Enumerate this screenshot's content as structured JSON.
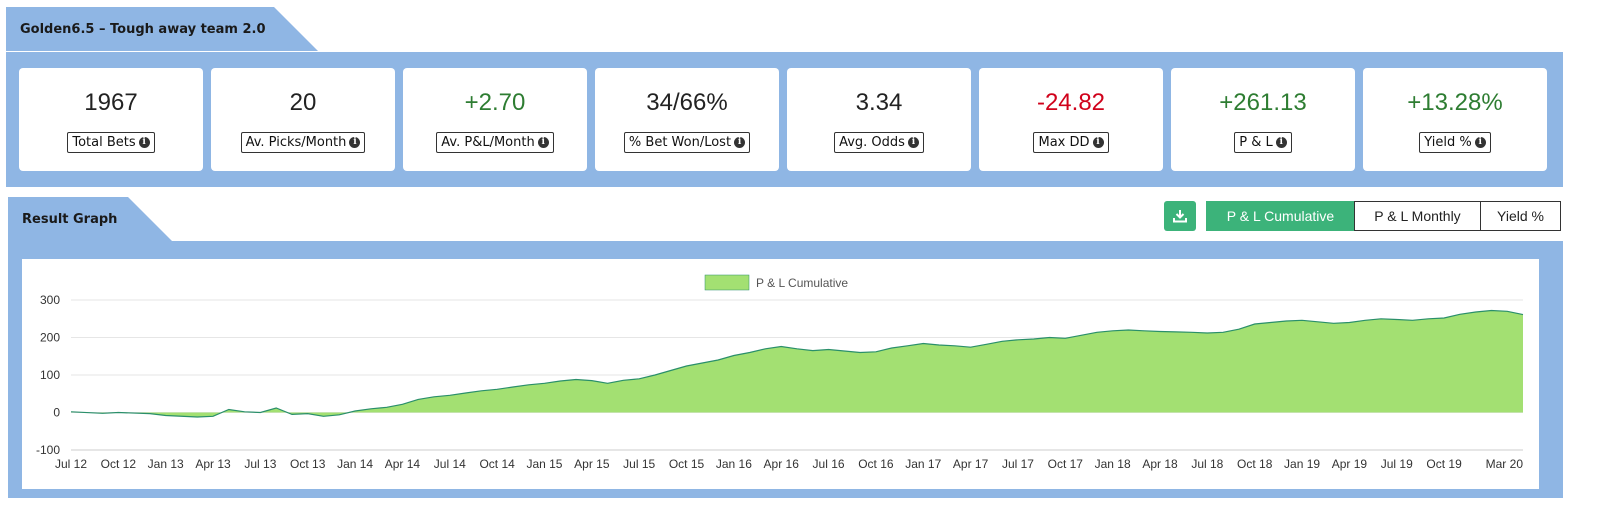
{
  "strategy": {
    "title": "Golden6.5 – Tough away team 2.0"
  },
  "stats": [
    {
      "value": "1967",
      "label": "Total Bets",
      "tone": "neutral"
    },
    {
      "value": "20",
      "label": "Av. Picks/Month",
      "tone": "neutral"
    },
    {
      "value": "+2.70",
      "label": "Av. P&L/Month",
      "tone": "positive"
    },
    {
      "value": "34/66%",
      "label": "% Bet Won/Lost",
      "tone": "neutral"
    },
    {
      "value": "3.34",
      "label": "Avg. Odds",
      "tone": "neutral"
    },
    {
      "value": "-24.82",
      "label": "Max DD",
      "tone": "negative"
    },
    {
      "value": "+261.13",
      "label": "P & L",
      "tone": "positive"
    },
    {
      "value": "+13.28%",
      "label": "Yield %",
      "tone": "positive"
    }
  ],
  "graph": {
    "title": "Result Graph",
    "download_icon": "download-icon",
    "toggles": [
      "P & L Cumulative",
      "P & L Monthly",
      "Yield %"
    ],
    "active_toggle": "P & L Cumulative"
  },
  "colors": {
    "panel": "#8fb6e4",
    "accent": "#3cb37a",
    "area_fill": "#a3e072",
    "area_line": "#2a8f6a",
    "positive": "#2e7d32",
    "negative": "#d0021b"
  },
  "chart_data": {
    "type": "area",
    "series": [
      {
        "name": "P & L Cumulative"
      }
    ],
    "x_ticks": [
      "Jul 12",
      "Oct 12",
      "Jan 13",
      "Apr 13",
      "Jul 13",
      "Oct 13",
      "Jan 14",
      "Apr 14",
      "Jul 14",
      "Oct 14",
      "Jan 15",
      "Apr 15",
      "Jul 15",
      "Oct 15",
      "Jan 16",
      "Apr 16",
      "Jul 16",
      "Oct 16",
      "Jan 17",
      "Apr 17",
      "Jul 17",
      "Oct 17",
      "Jan 18",
      "Apr 18",
      "Jul 18",
      "Oct 18",
      "Jan 19",
      "Apr 19",
      "Jul 19",
      "Oct 19",
      "Mar 20"
    ],
    "y_ticks": [
      -100,
      0,
      100,
      200,
      300
    ],
    "ylim": [
      -100,
      300
    ],
    "legend": "top-center",
    "points": [
      [
        "Jul 12",
        2
      ],
      [
        "Sep 12",
        -2
      ],
      [
        "Oct 12",
        0
      ],
      [
        "Dec 12",
        -3
      ],
      [
        "Jan 13",
        -8
      ],
      [
        "Mar 13",
        -12
      ],
      [
        "Apr 13",
        -10
      ],
      [
        "May 13",
        8
      ],
      [
        "Jun 13",
        2
      ],
      [
        "Jul 13",
        0
      ],
      [
        "Aug 13",
        12
      ],
      [
        "Sep 13",
        -5
      ],
      [
        "Oct 13",
        -3
      ],
      [
        "Nov 13",
        -10
      ],
      [
        "Dec 13",
        -6
      ],
      [
        "Jan 14",
        4
      ],
      [
        "Feb 14",
        10
      ],
      [
        "Mar 14",
        14
      ],
      [
        "Apr 14",
        22
      ],
      [
        "May 14",
        35
      ],
      [
        "Jun 14",
        42
      ],
      [
        "Jul 14",
        46
      ],
      [
        "Aug 14",
        52
      ],
      [
        "Sep 14",
        58
      ],
      [
        "Oct 14",
        62
      ],
      [
        "Nov 14",
        68
      ],
      [
        "Dec 14",
        74
      ],
      [
        "Jan 15",
        78
      ],
      [
        "Feb 15",
        84
      ],
      [
        "Mar 15",
        88
      ],
      [
        "Apr 15",
        85
      ],
      [
        "May 15",
        78
      ],
      [
        "Jun 15",
        86
      ],
      [
        "Jul 15",
        90
      ],
      [
        "Aug 15",
        100
      ],
      [
        "Sep 15",
        112
      ],
      [
        "Oct 15",
        124
      ],
      [
        "Nov 15",
        132
      ],
      [
        "Dec 15",
        140
      ],
      [
        "Jan 16",
        152
      ],
      [
        "Feb 16",
        160
      ],
      [
        "Mar 16",
        170
      ],
      [
        "Apr 16",
        176
      ],
      [
        "May 16",
        170
      ],
      [
        "Jun 16",
        165
      ],
      [
        "Jul 16",
        168
      ],
      [
        "Aug 16",
        164
      ],
      [
        "Sep 16",
        160
      ],
      [
        "Oct 16",
        162
      ],
      [
        "Nov 16",
        172
      ],
      [
        "Dec 16",
        178
      ],
      [
        "Jan 17",
        184
      ],
      [
        "Feb 17",
        180
      ],
      [
        "Mar 17",
        178
      ],
      [
        "Apr 17",
        174
      ],
      [
        "May 17",
        182
      ],
      [
        "Jun 17",
        190
      ],
      [
        "Jul 17",
        194
      ],
      [
        "Aug 17",
        196
      ],
      [
        "Sep 17",
        200
      ],
      [
        "Oct 17",
        198
      ],
      [
        "Nov 17",
        206
      ],
      [
        "Dec 17",
        214
      ],
      [
        "Jan 18",
        218
      ],
      [
        "Feb 18",
        220
      ],
      [
        "Mar 18",
        218
      ],
      [
        "Apr 18",
        216
      ],
      [
        "May 18",
        215
      ],
      [
        "Jun 18",
        214
      ],
      [
        "Jul 18",
        212
      ],
      [
        "Aug 18",
        214
      ],
      [
        "Sep 18",
        222
      ],
      [
        "Oct 18",
        236
      ],
      [
        "Nov 18",
        240
      ],
      [
        "Dec 18",
        244
      ],
      [
        "Jan 19",
        246
      ],
      [
        "Feb 19",
        242
      ],
      [
        "Mar 19",
        238
      ],
      [
        "Apr 19",
        240
      ],
      [
        "May 19",
        246
      ],
      [
        "Jun 19",
        250
      ],
      [
        "Jul 19",
        248
      ],
      [
        "Aug 19",
        246
      ],
      [
        "Sep 19",
        250
      ],
      [
        "Oct 19",
        252
      ],
      [
        "Nov 19",
        262
      ],
      [
        "Dec 19",
        268
      ],
      [
        "Jan 20",
        272
      ],
      [
        "Feb 20",
        270
      ],
      [
        "Mar 20",
        261
      ]
    ]
  }
}
